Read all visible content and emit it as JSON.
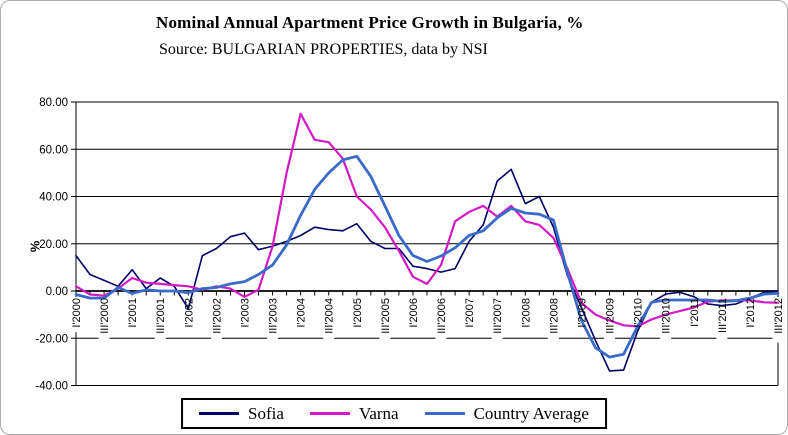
{
  "title": "Nominal Annual Apartment Price Growth in Bulgaria, %",
  "subtitle": "Source: BULGARIAN PROPERTIES, data by NSI",
  "y_axis": {
    "title": "%",
    "ticks": [
      "80.00",
      "60.00",
      "40.00",
      "20.00",
      "0.00",
      "-20.00",
      "-40.00"
    ]
  },
  "x_axis": {
    "label_every": 2,
    "labels": [
      "I'2000",
      "III'2000",
      "I'2001",
      "III'2001",
      "I'2002",
      "III'2002",
      "I'2003",
      "III'2003",
      "I'2004",
      "III'2004",
      "I'2005",
      "III'2005",
      "I'2006",
      "III'2006",
      "I'2007",
      "III'2007",
      "I'2008",
      "III'2008",
      "I'2009",
      "III'2009",
      "I'2010",
      "III'2010",
      "I'2011",
      "III'2011",
      "I'2012",
      "III'2012"
    ]
  },
  "chart_data": {
    "type": "line",
    "title": "Nominal Annual Apartment Price Growth in Bulgaria, %",
    "subtitle": "Source: BULGARIAN PROPERTIES, data by NSI",
    "xlabel": "",
    "ylabel": "%",
    "ylim": [
      -40,
      80
    ],
    "grid": true,
    "legend_position": "bottom",
    "categories": [
      "I'2000",
      "II'2000",
      "III'2000",
      "IV'2000",
      "I'2001",
      "II'2001",
      "III'2001",
      "IV'2001",
      "I'2002",
      "II'2002",
      "III'2002",
      "IV'2002",
      "I'2003",
      "II'2003",
      "III'2003",
      "IV'2003",
      "I'2004",
      "II'2004",
      "III'2004",
      "IV'2004",
      "I'2005",
      "II'2005",
      "III'2005",
      "IV'2005",
      "I'2006",
      "II'2006",
      "III'2006",
      "IV'2006",
      "I'2007",
      "II'2007",
      "III'2007",
      "IV'2007",
      "I'2008",
      "II'2008",
      "III'2008",
      "IV'2008",
      "I'2009",
      "II'2009",
      "III'2009",
      "IV'2009",
      "I'2010",
      "II'2010",
      "III'2010",
      "IV'2010",
      "I'2011",
      "II'2011",
      "III'2011",
      "IV'2011",
      "I'2012",
      "II'2012",
      "III'2012"
    ],
    "series": [
      {
        "name": "Sofia",
        "color": "#000066",
        "stroke_width": 1.6,
        "values": [
          15,
          7,
          4.5,
          2,
          9,
          1,
          5.5,
          2,
          -7.5,
          15,
          18,
          23,
          24.5,
          17.5,
          19,
          21,
          23.5,
          27,
          26,
          25.5,
          28.5,
          21,
          18,
          18,
          10.5,
          9.5,
          8,
          9.5,
          21,
          28,
          46.5,
          51.5,
          37,
          40,
          27,
          6.5,
          -7,
          -21,
          -33.8,
          -33.5,
          -17,
          -4.8,
          -1.3,
          -0.5,
          -2.4,
          -5.5,
          -6.2,
          -5.5,
          -3,
          -0.6,
          -0.1
        ]
      },
      {
        "name": "Varna",
        "color": "#D319C6",
        "stroke_width": 2.2,
        "values": [
          2,
          -1.5,
          -2,
          1,
          5.5,
          3.5,
          3,
          2.5,
          2,
          0.5,
          2,
          1,
          -2.5,
          0.5,
          19,
          50,
          75,
          64,
          63,
          56,
          40,
          34.5,
          27,
          17,
          6,
          3,
          11,
          29.5,
          33.5,
          36,
          31.5,
          36,
          29.5,
          28,
          22.5,
          9.5,
          -5,
          -10,
          -12.5,
          -14.5,
          -15,
          -12,
          -10,
          -8.5,
          -7,
          -4.5,
          -4,
          -4,
          -4,
          -4.8,
          -5
        ]
      },
      {
        "name": "Country Average",
        "color": "#3A6BC8",
        "stroke_width": 2.8,
        "values": [
          -1.5,
          -3,
          -3,
          1.5,
          -1,
          0.5,
          0,
          0,
          -0.7,
          1,
          1.5,
          3,
          4,
          7,
          11,
          19.5,
          32,
          43,
          50,
          55.5,
          57,
          48.5,
          36,
          23.5,
          15,
          12.5,
          14.8,
          18.3,
          23.5,
          25.5,
          31,
          35,
          33,
          32.5,
          30,
          8,
          -12.5,
          -24,
          -28,
          -26.8,
          -15,
          -4.8,
          -3.8,
          -3.8,
          -3.8,
          -3.8,
          -4.4,
          -4.1,
          -3,
          -1.3,
          -1
        ]
      }
    ]
  }
}
